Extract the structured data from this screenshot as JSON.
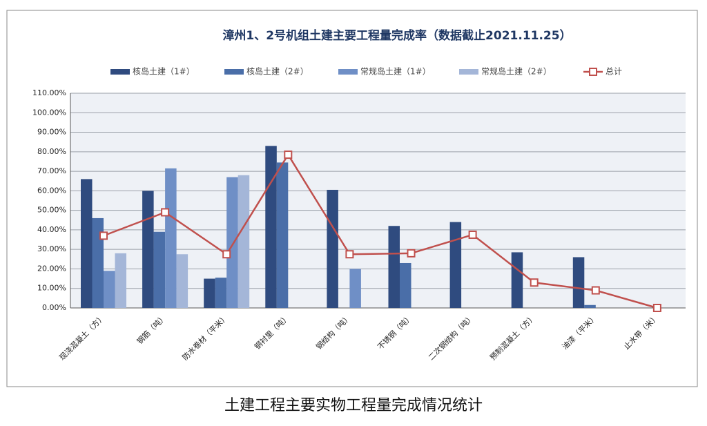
{
  "chart_data": {
    "type": "bar",
    "title": "漳州1、2号机组土建主要工程量完成率（数据截止2021.11.25）",
    "caption": "土建工程主要实物工程量完成情况统计",
    "categories": [
      "现浇混凝土（方）",
      "钢筋（吨）",
      "防水卷材（平米）",
      "钢衬里（吨）",
      "钢结构（吨）",
      "不锈钢（吨）",
      "二次钢结构（吨）",
      "预制混凝土（方）",
      "油漆（平米）",
      "止水带（米）"
    ],
    "series": [
      {
        "name": "核岛土建（1#）",
        "type": "bar",
        "color": "#2f4b7f",
        "values": [
          66,
          60,
          15,
          83,
          60.5,
          42,
          44,
          28.5,
          26,
          null
        ]
      },
      {
        "name": "核岛土建（2#）",
        "type": "bar",
        "color": "#4a6ea8",
        "values": [
          46,
          39,
          15.5,
          74.5,
          null,
          23,
          null,
          null,
          1.5,
          null
        ]
      },
      {
        "name": "常规岛土建（1#）",
        "type": "bar",
        "color": "#6f8fc6",
        "values": [
          19,
          71.5,
          67,
          null,
          20,
          null,
          null,
          null,
          null,
          null
        ]
      },
      {
        "name": "常规岛土建（2#）",
        "type": "bar",
        "color": "#a4b6d8",
        "values": [
          28,
          27.5,
          68,
          null,
          null,
          null,
          null,
          null,
          null,
          null
        ]
      },
      {
        "name": "总计",
        "type": "line",
        "color": "#c0504d",
        "values": [
          37,
          49,
          27.5,
          78.5,
          27.5,
          28,
          37.5,
          13,
          9,
          0
        ]
      }
    ],
    "ylim": [
      0,
      110
    ],
    "yticks": [
      {
        "value": 0,
        "label": "0.00%"
      },
      {
        "value": 10,
        "label": "10.00%"
      },
      {
        "value": 20,
        "label": "20.00%"
      },
      {
        "value": 30,
        "label": "30.00%"
      },
      {
        "value": 40,
        "label": "40.00%"
      },
      {
        "value": 50,
        "label": "50.00%"
      },
      {
        "value": 60,
        "label": "60.00%"
      },
      {
        "value": 70,
        "label": "70.00%"
      },
      {
        "value": 80,
        "label": "80.00%"
      },
      {
        "value": 90,
        "label": "90.00%"
      },
      {
        "value": 100,
        "label": "100.00%"
      },
      {
        "value": 110,
        "label": "110.00%"
      }
    ],
    "grid": true,
    "legend": "top"
  }
}
